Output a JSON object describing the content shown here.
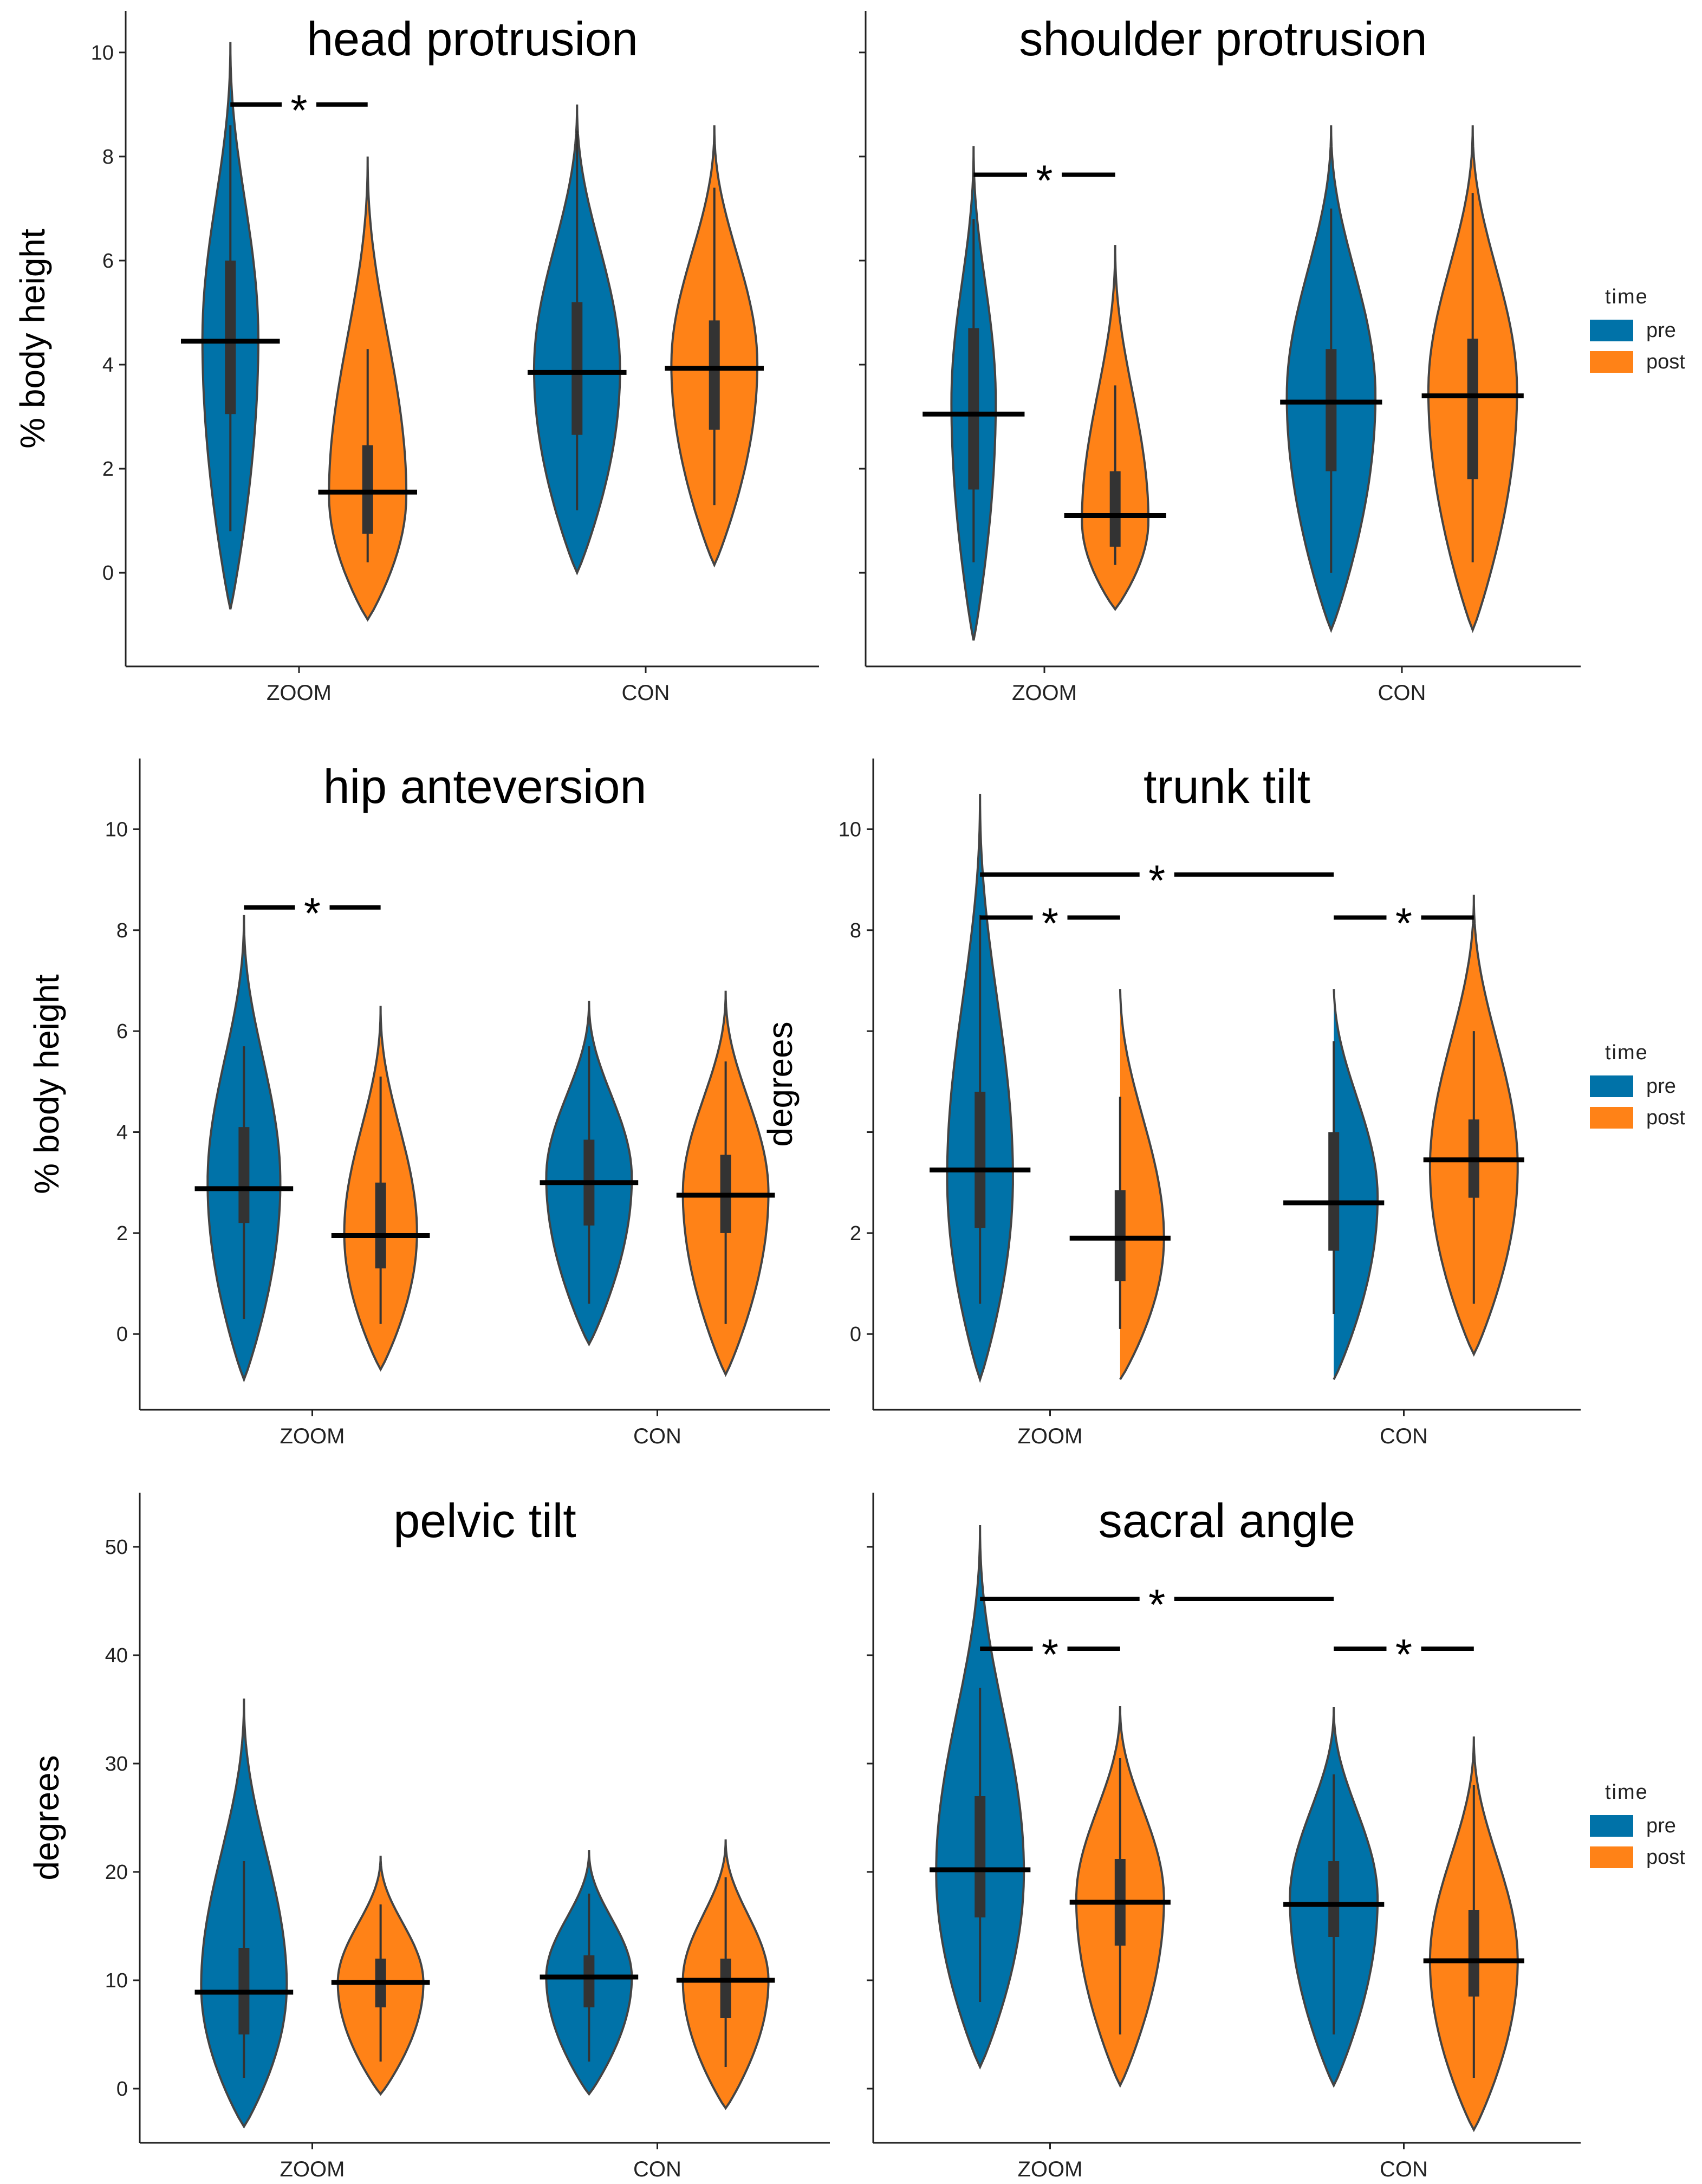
{
  "colors": {
    "pre": "#0072a8",
    "post": "#ff8217",
    "outline": "#444444",
    "axis": "#222222"
  },
  "legend": {
    "title": "time",
    "items": [
      "pre",
      "post"
    ]
  },
  "chart_data": [
    {
      "type": "violin",
      "title": "head protrusion",
      "ylabel": "% body height",
      "ylim": [
        -1.8,
        10.8
      ],
      "yticks": [
        "0",
        "2",
        "4",
        "6",
        "8",
        "10"
      ],
      "categories": [
        "ZOOM",
        "CON"
      ],
      "series": [
        {
          "name": "pre",
          "groups": [
            {
              "min": -0.7,
              "max": 10.2,
              "mean": 4.45,
              "q1": 3.05,
              "q3": 6.0,
              "wlo": 0.8,
              "whi": 8.6,
              "peak": 4.5,
              "halfwidth": 0.65
            },
            {
              "min": 0.0,
              "max": 9.0,
              "mean": 3.85,
              "q1": 2.65,
              "q3": 5.2,
              "wlo": 1.2,
              "whi": 8.5,
              "peak": 3.9,
              "halfwidth": 1.0
            }
          ]
        },
        {
          "name": "post",
          "groups": [
            {
              "min": -0.9,
              "max": 8.0,
              "mean": 1.55,
              "q1": 0.75,
              "q3": 2.45,
              "wlo": 0.2,
              "whi": 4.3,
              "peak": 1.5,
              "halfwidth": 0.9
            },
            {
              "min": 0.15,
              "max": 8.6,
              "mean": 3.93,
              "q1": 2.75,
              "q3": 4.85,
              "wlo": 1.3,
              "whi": 7.4,
              "peak": 4.0,
              "halfwidth": 1.0
            }
          ]
        }
      ],
      "significance": [
        {
          "from": [
            0,
            0
          ],
          "to": [
            0,
            1
          ],
          "y": 9.0
        }
      ]
    },
    {
      "type": "violin",
      "title": "shoulder protrusion",
      "ylabel": "",
      "ylim": [
        -1.8,
        10.8
      ],
      "yticks": [],
      "categories": [
        "ZOOM",
        "CON"
      ],
      "series": [
        {
          "name": "pre",
          "groups": [
            {
              "min": -1.3,
              "max": 8.2,
              "mean": 3.05,
              "q1": 1.6,
              "q3": 4.7,
              "wlo": 0.2,
              "whi": 6.8,
              "peak": 3.3,
              "halfwidth": 0.5
            },
            {
              "min": -1.1,
              "max": 8.6,
              "mean": 3.28,
              "q1": 1.95,
              "q3": 4.3,
              "wlo": 0.0,
              "whi": 7.0,
              "peak": 3.4,
              "halfwidth": 1.0
            }
          ]
        },
        {
          "name": "post",
          "groups": [
            {
              "min": -0.7,
              "max": 6.3,
              "mean": 1.1,
              "q1": 0.5,
              "q3": 1.95,
              "wlo": 0.15,
              "whi": 3.6,
              "peak": 1.0,
              "halfwidth": 0.75
            },
            {
              "min": -1.1,
              "max": 8.6,
              "mean": 3.4,
              "q1": 1.8,
              "q3": 4.5,
              "wlo": 0.2,
              "whi": 7.3,
              "peak": 3.5,
              "halfwidth": 1.0
            }
          ]
        }
      ],
      "significance": [
        {
          "from": [
            0,
            0
          ],
          "to": [
            0,
            1
          ],
          "y": 7.65
        }
      ]
    },
    {
      "type": "violin",
      "title": "hip anteversion",
      "ylabel": "% body height",
      "ylim": [
        -1.5,
        11.4
      ],
      "yticks": [
        "0",
        "2",
        "4",
        "6",
        "8",
        "10"
      ],
      "categories": [
        "ZOOM",
        "CON"
      ],
      "series": [
        {
          "name": "pre",
          "groups": [
            {
              "min": -0.9,
              "max": 8.3,
              "mean": 2.88,
              "q1": 2.2,
              "q3": 4.1,
              "wlo": 0.3,
              "whi": 5.7,
              "peak": 3.0,
              "halfwidth": 0.85
            },
            {
              "min": -0.2,
              "max": 6.6,
              "mean": 3.0,
              "q1": 2.15,
              "q3": 3.85,
              "wlo": 0.6,
              "whi": 5.7,
              "peak": 3.1,
              "halfwidth": 1.0
            }
          ]
        },
        {
          "name": "post",
          "groups": [
            {
              "min": -0.7,
              "max": 6.5,
              "mean": 1.95,
              "q1": 1.3,
              "q3": 3.0,
              "wlo": 0.2,
              "whi": 5.1,
              "peak": 2.0,
              "halfwidth": 0.85
            },
            {
              "min": -0.8,
              "max": 6.8,
              "mean": 2.75,
              "q1": 2.0,
              "q3": 3.55,
              "wlo": 0.2,
              "whi": 5.4,
              "peak": 2.8,
              "halfwidth": 1.0
            }
          ]
        }
      ],
      "significance": [
        {
          "from": [
            0,
            0
          ],
          "to": [
            0,
            1
          ],
          "y": 8.45
        }
      ]
    },
    {
      "type": "violin",
      "title": "trunk tilt",
      "ylabel": "degrees",
      "ylim": [
        -1.5,
        11.4
      ],
      "yticks": [
        "0",
        "2",
        "",
        "",
        "8",
        "10"
      ],
      "categories": [
        "ZOOM",
        "CON"
      ],
      "series": [
        {
          "name": "pre",
          "groups": [
            {
              "min": -0.9,
              "max": 10.7,
              "mean": 3.25,
              "q1": 2.1,
              "q3": 4.8,
              "wlo": 0.6,
              "whi": 8.3,
              "peak": 3.1,
              "halfwidth": 0.75
            },
            {
              "min": -0.9,
              "max": 7.0,
              "mean": 2.6,
              "q1": 1.65,
              "q3": 4.0,
              "wlo": 0.4,
              "whi": 5.8,
              "peak": 2.7,
              "halfwidth": 1.0
            }
          ]
        },
        {
          "name": "post",
          "groups": [
            {
              "min": -0.9,
              "max": 7.0,
              "mean": 1.9,
              "q1": 1.05,
              "q3": 2.85,
              "wlo": 0.1,
              "whi": 4.7,
              "peak": 1.9,
              "halfwidth": 1.0
            },
            {
              "min": -0.4,
              "max": 8.7,
              "mean": 3.45,
              "q1": 2.7,
              "q3": 4.25,
              "wlo": 0.6,
              "whi": 6.0,
              "peak": 3.3,
              "halfwidth": 1.0
            }
          ]
        }
      ],
      "significance": [
        {
          "from": [
            0,
            0
          ],
          "to": [
            1,
            0
          ],
          "y": 9.1
        },
        {
          "from": [
            0,
            0
          ],
          "to": [
            0,
            1
          ],
          "y": 8.25
        },
        {
          "from": [
            1,
            0
          ],
          "to": [
            1,
            1
          ],
          "y": 8.25
        }
      ]
    },
    {
      "type": "violin",
      "title": "pelvic tilt",
      "ylabel": "degrees",
      "ylim": [
        -5,
        55
      ],
      "yticks": [
        "0",
        "10",
        "20",
        "30",
        "40",
        "50"
      ],
      "categories": [
        "ZOOM",
        "CON"
      ],
      "series": [
        {
          "name": "pre",
          "groups": [
            {
              "min": -3.5,
              "max": 36.0,
              "mean": 8.9,
              "q1": 5.0,
              "q3": 13.0,
              "wlo": 1.0,
              "whi": 21.0,
              "peak": 9.5,
              "halfwidth": 1.0
            },
            {
              "min": -0.5,
              "max": 22.0,
              "mean": 10.3,
              "q1": 7.5,
              "q3": 12.3,
              "wlo": 2.5,
              "whi": 18.0,
              "peak": 10.3,
              "halfwidth": 1.0
            }
          ]
        },
        {
          "name": "post",
          "groups": [
            {
              "min": -0.5,
              "max": 21.5,
              "mean": 9.8,
              "q1": 7.5,
              "q3": 12.0,
              "wlo": 2.5,
              "whi": 17.0,
              "peak": 9.8,
              "halfwidth": 1.0
            },
            {
              "min": -1.8,
              "max": 23.0,
              "mean": 10.0,
              "q1": 6.5,
              "q3": 12.0,
              "wlo": 2.0,
              "whi": 19.5,
              "peak": 10.0,
              "halfwidth": 1.0
            }
          ]
        }
      ],
      "significance": []
    },
    {
      "type": "violin",
      "title": "sacral angle",
      "ylabel": "",
      "ylim": [
        -5,
        55
      ],
      "yticks": [],
      "categories": [
        "ZOOM",
        "CON"
      ],
      "series": [
        {
          "name": "pre",
          "groups": [
            {
              "min": 2.0,
              "max": 52.0,
              "mean": 20.2,
              "q1": 15.8,
              "q3": 27.0,
              "wlo": 8.0,
              "whi": 37.0,
              "peak": 20.0,
              "halfwidth": 1.0
            },
            {
              "min": 0.3,
              "max": 35.2,
              "mean": 17.0,
              "q1": 14.0,
              "q3": 21.0,
              "wlo": 5.0,
              "whi": 29.0,
              "peak": 17.5,
              "halfwidth": 1.0
            }
          ]
        },
        {
          "name": "post",
          "groups": [
            {
              "min": 0.3,
              "max": 35.3,
              "mean": 17.2,
              "q1": 13.2,
              "q3": 21.2,
              "wlo": 5.0,
              "whi": 30.5,
              "peak": 17.5,
              "halfwidth": 1.0
            },
            {
              "min": -3.8,
              "max": 32.5,
              "mean": 11.8,
              "q1": 8.5,
              "q3": 16.5,
              "wlo": 1.0,
              "whi": 28.0,
              "peak": 11.8,
              "halfwidth": 1.0
            }
          ]
        }
      ],
      "significance": [
        {
          "from": [
            0,
            0
          ],
          "to": [
            1,
            0
          ],
          "y": 45.2
        },
        {
          "from": [
            0,
            0
          ],
          "to": [
            0,
            1
          ],
          "y": 40.6
        },
        {
          "from": [
            1,
            0
          ],
          "to": [
            1,
            1
          ],
          "y": 40.6
        }
      ]
    }
  ]
}
